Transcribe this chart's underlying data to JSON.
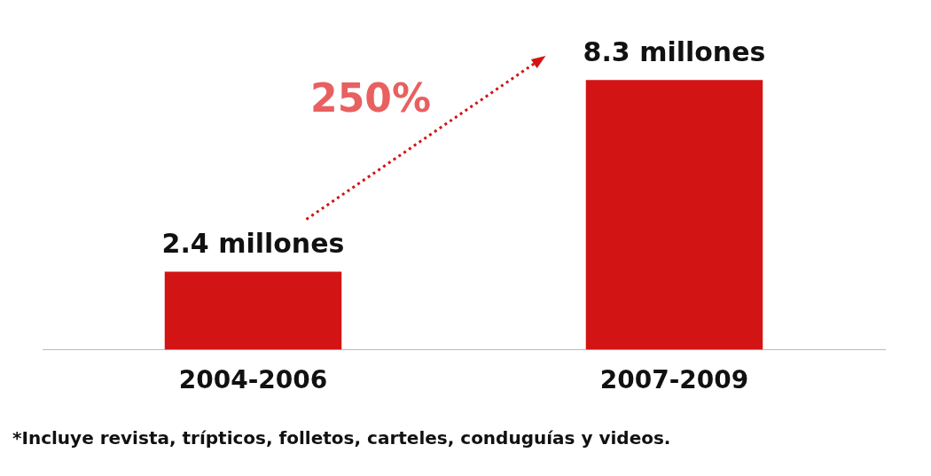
{
  "chart_data": {
    "type": "bar",
    "categories": [
      "2004-2006",
      "2007-2009"
    ],
    "values": [
      2.4,
      8.3
    ],
    "value_labels": [
      "2.4 millones",
      "8.3 millones"
    ],
    "color": "#d21414",
    "annotations": [
      "250%",
      "*Incluye revista, trípticos, folletos, carteles, conduguías y videos."
    ],
    "legend": false,
    "grid": false
  }
}
